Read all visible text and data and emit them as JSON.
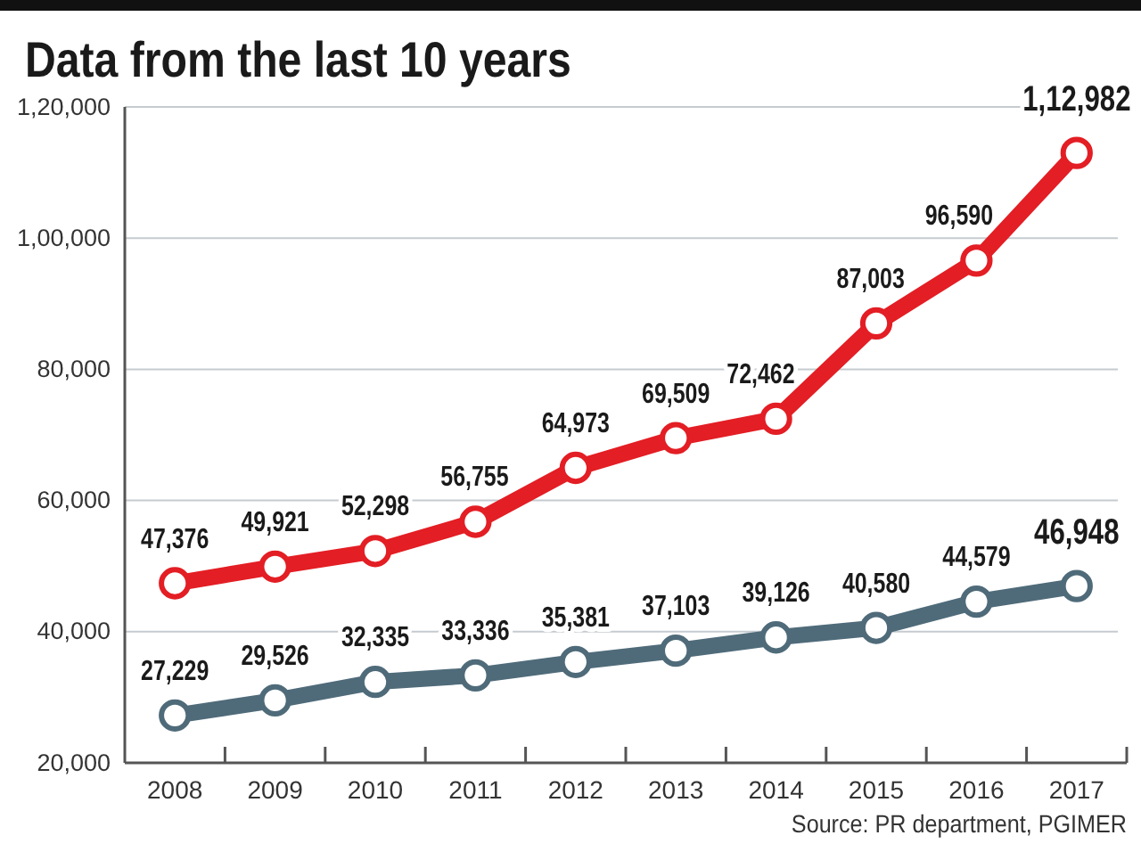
{
  "chart_data": {
    "type": "line",
    "title": "Data from the last 10 years",
    "categories": [
      "2008",
      "2009",
      "2010",
      "2011",
      "2012",
      "2013",
      "2014",
      "2015",
      "2016",
      "2017"
    ],
    "series": [
      {
        "color": "#e31e24",
        "values": [
          47376,
          49921,
          52298,
          56755,
          64973,
          69509,
          72462,
          87003,
          96590,
          112982
        ],
        "value_labels": [
          "47,376",
          "49,921",
          "52,298",
          "56,755",
          "64,973",
          "69,509",
          "72,462",
          "87,003",
          "96,590",
          "1,12,982"
        ]
      },
      {
        "color": "#4f6b7a",
        "values": [
          27229,
          29526,
          32335,
          33336,
          35381,
          37103,
          39126,
          40580,
          44579,
          46948
        ],
        "value_labels": [
          "27,229",
          "29,526",
          "32,335",
          "33,336",
          "35,381",
          "37,103",
          "39,126",
          "40,580",
          "44,579",
          "46,948"
        ]
      }
    ],
    "ylim": [
      20000,
      120000
    ],
    "yticks": [
      {
        "value": 20000,
        "label": "20,000"
      },
      {
        "value": 40000,
        "label": "40,000"
      },
      {
        "value": 60000,
        "label": "60,000"
      },
      {
        "value": 80000,
        "label": "80,000"
      },
      {
        "value": 100000,
        "label": "1,00,000"
      },
      {
        "value": 120000,
        "label": "1,20,000"
      }
    ],
    "grid": "y",
    "marker": "circle",
    "line_style": "solid",
    "annotations": [
      "Source: PR department, PGIMER"
    ]
  }
}
